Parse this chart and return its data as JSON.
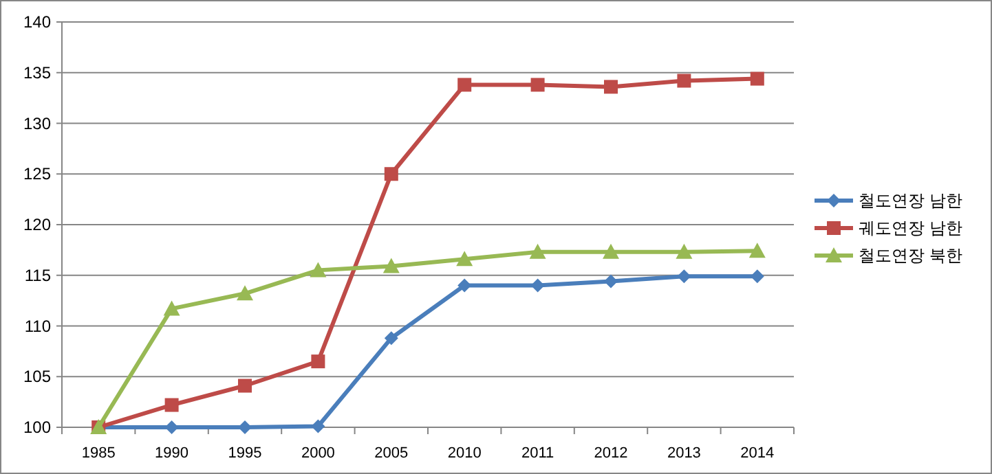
{
  "chart_data": {
    "type": "line",
    "categories": [
      "1985",
      "1990",
      "1995",
      "2000",
      "2005",
      "2010",
      "2011",
      "2012",
      "2013",
      "2014"
    ],
    "series": [
      {
        "name": "철도연장 남한",
        "color": "#4a7ebb",
        "marker": "diamond",
        "values": [
          100,
          100,
          100,
          100.1,
          108.8,
          114.0,
          114.0,
          114.4,
          114.9,
          114.9
        ]
      },
      {
        "name": "궤도연장 남한",
        "color": "#be4b48",
        "marker": "square",
        "values": [
          100,
          102.2,
          104.1,
          106.5,
          125.0,
          133.8,
          133.8,
          133.6,
          134.2,
          134.4
        ]
      },
      {
        "name": "철도연장 북한",
        "color": "#98b954",
        "marker": "triangle",
        "values": [
          100,
          111.7,
          113.2,
          115.5,
          115.9,
          116.6,
          117.3,
          117.3,
          117.3,
          117.4
        ]
      }
    ],
    "ylim": [
      100,
      140
    ],
    "yticks": [
      100,
      105,
      110,
      115,
      120,
      125,
      130,
      135,
      140
    ],
    "grid": "y",
    "legend": "right",
    "line_style": "solid"
  }
}
